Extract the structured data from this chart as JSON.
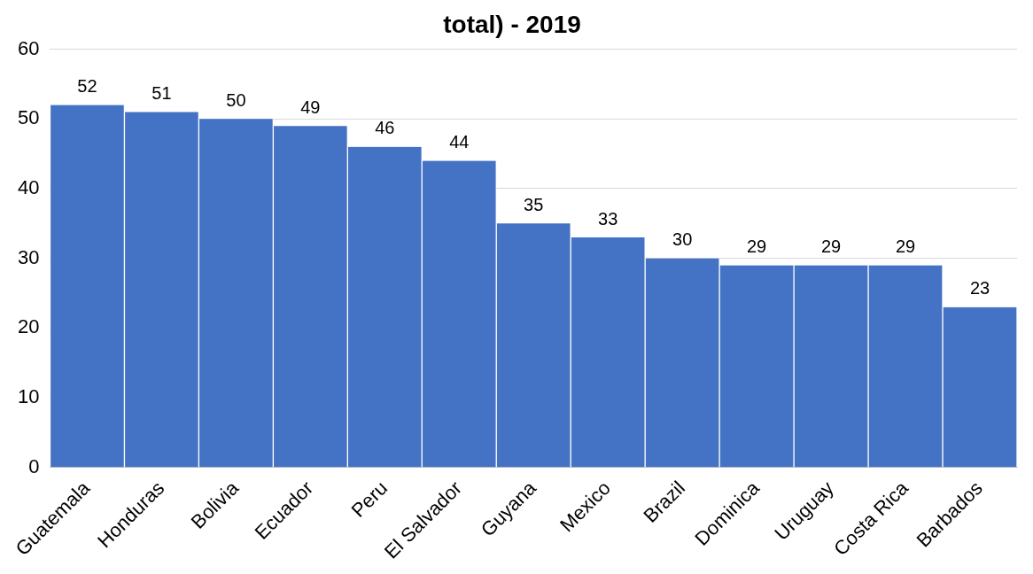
{
  "chart_data": {
    "type": "bar",
    "title": "total) - 2019",
    "categories": [
      "Guatemala",
      "Honduras",
      "Bolivia",
      "Ecuador",
      "Peru",
      "El Salvador",
      "Guyana",
      "Mexico",
      "Brazil",
      "Dominica",
      "Uruguay",
      "Costa Rica",
      "Barbados"
    ],
    "values": [
      52,
      51,
      50,
      49,
      46,
      44,
      35,
      33,
      30,
      29,
      29,
      29,
      23
    ],
    "color": "#4472c4",
    "ylim": [
      0,
      60
    ],
    "yticks": [
      0,
      10,
      20,
      30,
      40,
      50,
      60
    ],
    "grid": "y",
    "data_labels": true,
    "legend": false
  }
}
